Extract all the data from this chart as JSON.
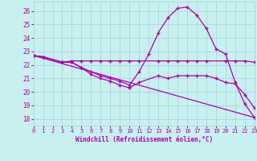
{
  "background_color": "#c8f0f0",
  "grid_color": "#b0dada",
  "line_color": "#aa00aa",
  "xlabel": "Windchill (Refroidissement éolien,°C)",
  "xlim": [
    0,
    23
  ],
  "ylim": [
    17.5,
    26.7
  ],
  "yticks": [
    18,
    19,
    20,
    21,
    22,
    23,
    24,
    25,
    26
  ],
  "xticks": [
    0,
    1,
    2,
    3,
    4,
    5,
    6,
    7,
    8,
    9,
    10,
    11,
    12,
    13,
    14,
    15,
    16,
    17,
    18,
    19,
    20,
    21,
    22,
    23
  ],
  "line1_x": [
    0,
    1,
    3,
    4,
    5,
    6,
    7,
    8,
    9,
    10,
    11,
    13,
    14,
    15,
    16,
    17,
    18,
    20,
    21,
    22,
    23
  ],
  "line1_y": [
    22.7,
    22.6,
    22.2,
    22.3,
    22.3,
    22.3,
    22.3,
    22.3,
    22.3,
    22.3,
    22.3,
    22.3,
    22.3,
    22.3,
    22.3,
    22.3,
    22.3,
    22.3,
    22.3,
    22.3,
    22.2
  ],
  "line2_x": [
    0,
    1,
    3,
    4,
    5,
    6,
    7,
    8,
    9,
    10,
    11,
    12,
    13,
    14,
    15,
    16,
    17,
    18,
    19,
    20,
    21,
    22,
    23
  ],
  "line2_y": [
    22.7,
    22.6,
    22.2,
    22.2,
    21.8,
    21.5,
    21.2,
    21.0,
    20.8,
    20.5,
    21.5,
    22.8,
    24.4,
    25.5,
    26.2,
    26.3,
    25.7,
    24.7,
    23.2,
    22.8,
    20.7,
    19.1,
    18.1
  ],
  "line3_x": [
    0,
    1,
    3,
    4,
    5,
    6,
    7,
    8,
    9,
    10,
    11,
    13,
    14,
    15,
    16,
    17,
    18,
    19,
    20,
    21,
    22,
    23
  ],
  "line3_y": [
    22.7,
    22.6,
    22.2,
    22.2,
    21.8,
    21.3,
    21.0,
    20.8,
    20.5,
    20.3,
    20.7,
    21.2,
    21.0,
    21.2,
    21.2,
    21.2,
    21.2,
    21.0,
    20.7,
    20.6,
    19.8,
    18.8
  ],
  "line4_x": [
    0,
    23
  ],
  "line4_y": [
    22.7,
    18.1
  ]
}
